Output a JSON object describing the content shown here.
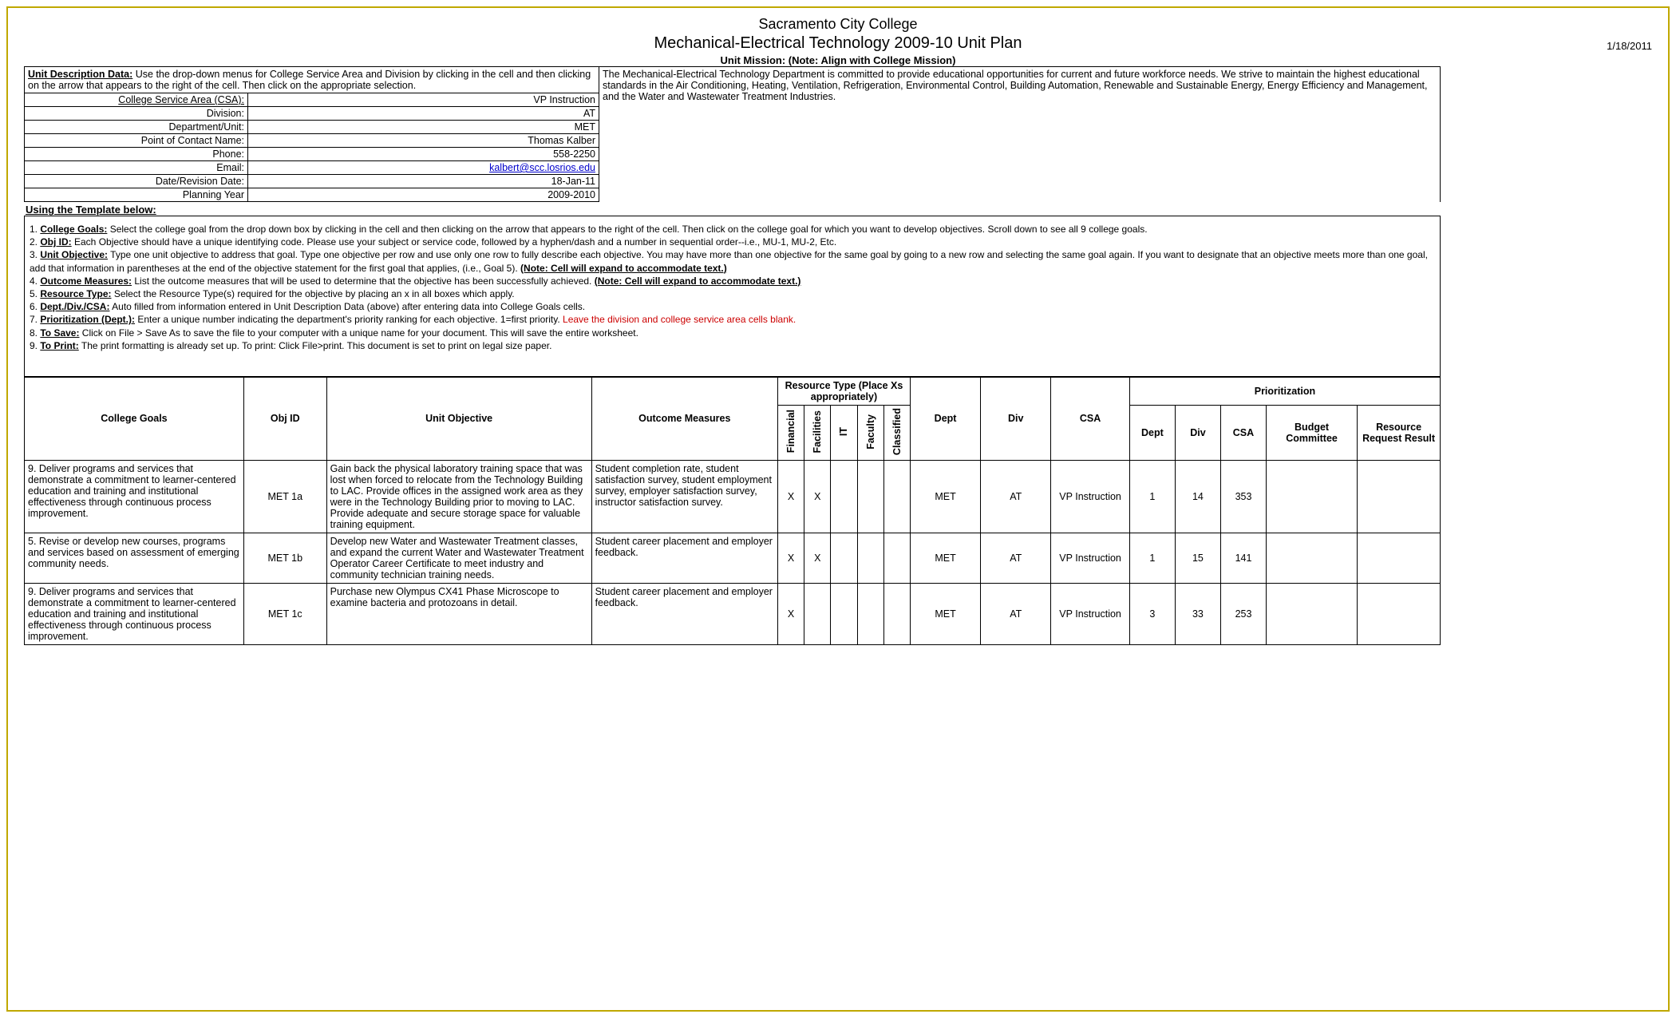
{
  "header": {
    "institution": "Sacramento City College",
    "plan_title": "Mechanical-Electrical Technology 2009-10 Unit Plan",
    "print_date": "1/18/2011",
    "mission_label": "Unit Mission:  (Note:  Align with College Mission)"
  },
  "description_intro": {
    "label": "Unit Description Data:",
    "text": " Use the drop-down menus for College Service Area and Division by clicking in the cell and then clicking on the arrow that appears to the right of the cell. Then click on the appropriate selection."
  },
  "mission_text": "The Mechanical-Electrical Technology Department is committed to provide educational opportunities for current and future workforce needs. We strive to maintain the highest educational standards in the Air Conditioning, Heating, Ventilation, Refrigeration, Environmental Control, Building Automation, Renewable and Sustainable Energy, Energy Efficiency and Management, and the Water and Wastewater Treatment Industries.",
  "kv": [
    {
      "label": "College Service Area (CSA):",
      "value": "VP Instruction",
      "underline_label": true
    },
    {
      "label": "Division:",
      "value": "AT"
    },
    {
      "label": "Department/Unit:",
      "value": "MET"
    },
    {
      "label": "Point of Contact Name:",
      "value": "Thomas Kalber"
    },
    {
      "label": "Phone:",
      "value": "558-2250"
    },
    {
      "label": "Email:",
      "value": "kalbert@scc.losrios.edu",
      "link": true
    },
    {
      "label": "Date/Revision Date:",
      "value": "18-Jan-11"
    },
    {
      "label": "Planning Year",
      "value": "2009-2010"
    }
  ],
  "using_template_label": "Using the Template below:",
  "instructions": [
    {
      "n": "1.",
      "b": "College Goals:",
      "t": " Select the college goal from the drop down box by clicking in the cell and then clicking on the arrow that appears to the right of the cell. Then click on the college goal for which you want to develop objectives. Scroll down to see all 9 college goals."
    },
    {
      "n": "2.",
      "b": "Obj ID:",
      "t": "  Each Objective should have a unique identifying code.  Please use your subject or service code, followed by a hyphen/dash and a number in sequential order--i.e., MU-1, MU-2, Etc."
    },
    {
      "n": "3.",
      "b": "Unit Objective:",
      "t": " Type one unit objective to address that goal. Type one objective per row and use only one row to fully describe each objective.  You may have more than one objective for the same goal by going to a new row and selecting the same goal again.  If you want to designate that an objective meets more than one goal, add that information in parentheses at the end of the objective statement for the first goal that applies, (i.e., Goal 5).  ",
      "tail_b": "(Note: Cell will expand to accommodate text.)"
    },
    {
      "n": "4.",
      "b": "Outcome Measures:",
      "t": " List the outcome measures that will be used to determine that the objective has been successfully achieved. ",
      "tail_b": "(Note: Cell will expand to accommodate text.)"
    },
    {
      "n": "5.",
      "b": "Resource Type:",
      "t": " Select the Resource Type(s) required for the objective by placing an x in all boxes which apply."
    },
    {
      "n": "6.",
      "b": "Dept./Div./CSA:",
      "t": "  Auto filled from information entered in Unit Description Data (above) after entering data into College Goals cells."
    },
    {
      "n": "7.",
      "b": "Prioritization (Dept.):",
      "t": " Enter a unique number indicating the department's priority ranking for each objective. 1=first priority. ",
      "red": "Leave the division and college service area cells blank."
    },
    {
      "n": "8.",
      "b": "To Save:",
      "t": "  Click on File > Save As to save the file to your computer with a unique name for your document.  This will save the entire worksheet."
    },
    {
      "n": "9.",
      "b": "To Print:",
      "t": "  The print formatting is already set up. To print:  Click File>print. This document is set to print on legal size paper."
    }
  ],
  "table": {
    "group_headers": {
      "resource_type": "Resource Type (Place Xs appropriately)",
      "prioritization": "Prioritization"
    },
    "columns": {
      "college_goals": "College Goals",
      "obj_id": "Obj ID",
      "unit_objective": "Unit Objective",
      "outcome_measures": "Outcome Measures",
      "rt": [
        "Financial",
        "Facilities",
        "IT",
        "Faculty",
        "Classified"
      ],
      "dept": "Dept",
      "div": "Div",
      "csa": "CSA",
      "p_dept": "Dept",
      "p_div": "Div",
      "p_csa": "CSA",
      "budget": "Budget Committee",
      "result": "Resource Request Result"
    },
    "rows": [
      {
        "goal": "9. Deliver programs and services that demonstrate a commitment to learner-centered education and training and institutional effectiveness through continuous process improvement.",
        "obj_id": "MET 1a",
        "unit_objective": "Gain back the physical laboratory training space that was lost when forced to relocate from the Technology Building to LAC. Provide offices in the assigned work area as they were in the Technology Building prior to moving to LAC. Provide adequate and secure storage space for valuable training equipment.",
        "outcome": "Student completion rate, student satisfaction survey, student employment survey, employer satisfaction survey, instructor satisfaction survey.",
        "rt": [
          "X",
          "X",
          "",
          "",
          ""
        ],
        "dept": "MET",
        "div": "AT",
        "csa": "VP Instruction",
        "p_dept": "1",
        "p_div": "14",
        "p_csa": "353",
        "budget": "",
        "result": ""
      },
      {
        "goal": "5. Revise or develop new courses, programs and services based on assessment of emerging community needs.",
        "obj_id": "MET 1b",
        "unit_objective": "Develop new Water and Wastewater Treatment classes, and expand the current Water and Wastewater Treatment Operator Career Certificate to meet industry and community technician training needs.",
        "outcome": "Student career placement and employer feedback.",
        "rt": [
          "X",
          "X",
          "",
          "",
          ""
        ],
        "dept": "MET",
        "div": "AT",
        "csa": "VP Instruction",
        "p_dept": "1",
        "p_div": "15",
        "p_csa": "141",
        "budget": "",
        "result": ""
      },
      {
        "goal": "9. Deliver programs and services that demonstrate a commitment to learner-centered education and training and institutional effectiveness through continuous process improvement.",
        "obj_id": "MET 1c",
        "unit_objective": "Purchase new Olympus CX41 Phase Microscope to examine bacteria and protozoans in detail.",
        "outcome": "Student career placement and employer feedback.",
        "rt": [
          "X",
          "",
          "",
          "",
          ""
        ],
        "dept": "MET",
        "div": "AT",
        "csa": "VP Instruction",
        "p_dept": "3",
        "p_div": "33",
        "p_csa": "253",
        "budget": "",
        "result": ""
      }
    ]
  },
  "colors": {
    "border_outer": "#c0a800",
    "link": "#0000cc",
    "red_text": "#cc0000",
    "grid": "#000000",
    "background": "#ffffff"
  }
}
